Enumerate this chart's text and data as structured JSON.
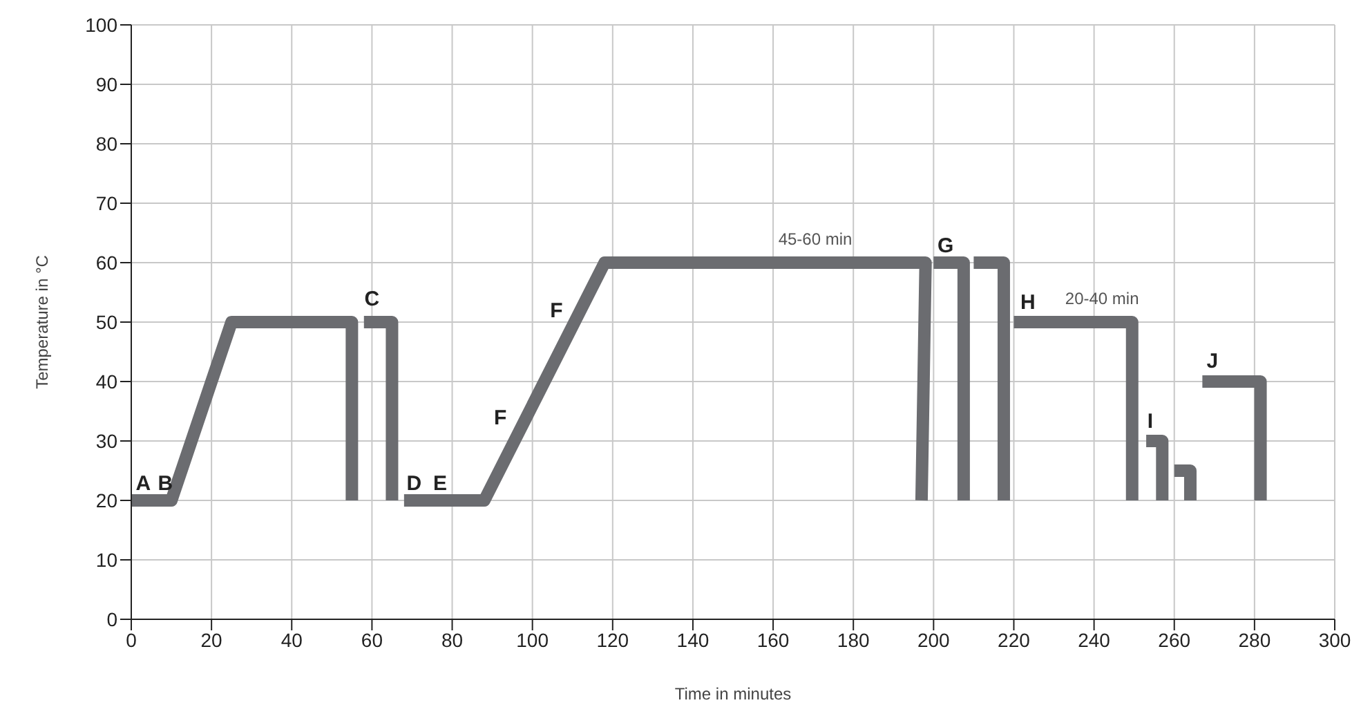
{
  "chart_data": {
    "type": "line",
    "xlabel": "Time in minutes",
    "ylabel": "Temperature in °C",
    "xlim": [
      0,
      300
    ],
    "xticks": [
      0,
      20,
      40,
      60,
      80,
      100,
      120,
      140,
      160,
      180,
      200,
      220,
      240,
      260,
      280,
      300
    ],
    "ylim": [
      0,
      100
    ],
    "yticks": [
      0,
      10,
      20,
      30,
      40,
      50,
      60,
      70,
      80,
      90,
      100
    ],
    "grid": true,
    "marker": "none",
    "line_style": "solid",
    "series": [
      {
        "color": "#6b6c70",
        "x": [
          0,
          10,
          25,
          55,
          55
        ],
        "values": [
          20,
          20,
          50,
          50,
          20
        ]
      },
      {
        "color": "#6b6c70",
        "x": [
          58,
          65,
          65
        ],
        "values": [
          50,
          50,
          20
        ]
      },
      {
        "color": "#6b6c70",
        "x": [
          68,
          88,
          118,
          198,
          197
        ],
        "values": [
          20,
          20,
          60,
          60,
          20
        ]
      },
      {
        "color": "#6b6c70",
        "x": [
          200,
          207.5,
          207.5
        ],
        "values": [
          60,
          60,
          20
        ]
      },
      {
        "color": "#6b6c70",
        "x": [
          210,
          217.5,
          217.5
        ],
        "values": [
          60,
          60,
          20
        ]
      },
      {
        "color": "#6b6c70",
        "x": [
          220,
          249.5,
          249.5
        ],
        "values": [
          50,
          50,
          20
        ]
      },
      {
        "color": "#6b6c70",
        "x": [
          253,
          257,
          257
        ],
        "values": [
          30,
          30,
          20
        ]
      },
      {
        "color": "#6b6c70",
        "x": [
          260,
          264,
          264
        ],
        "values": [
          25,
          25,
          20
        ]
      },
      {
        "color": "#6b6c70",
        "x": [
          267,
          281.5,
          281.5
        ],
        "values": [
          40,
          40,
          20
        ]
      }
    ],
    "annotations": [
      "A",
      "B",
      "C",
      "D",
      "E",
      "F",
      "F",
      "45-60 min",
      "G",
      "H",
      "20-40 min",
      "I",
      "J"
    ]
  }
}
